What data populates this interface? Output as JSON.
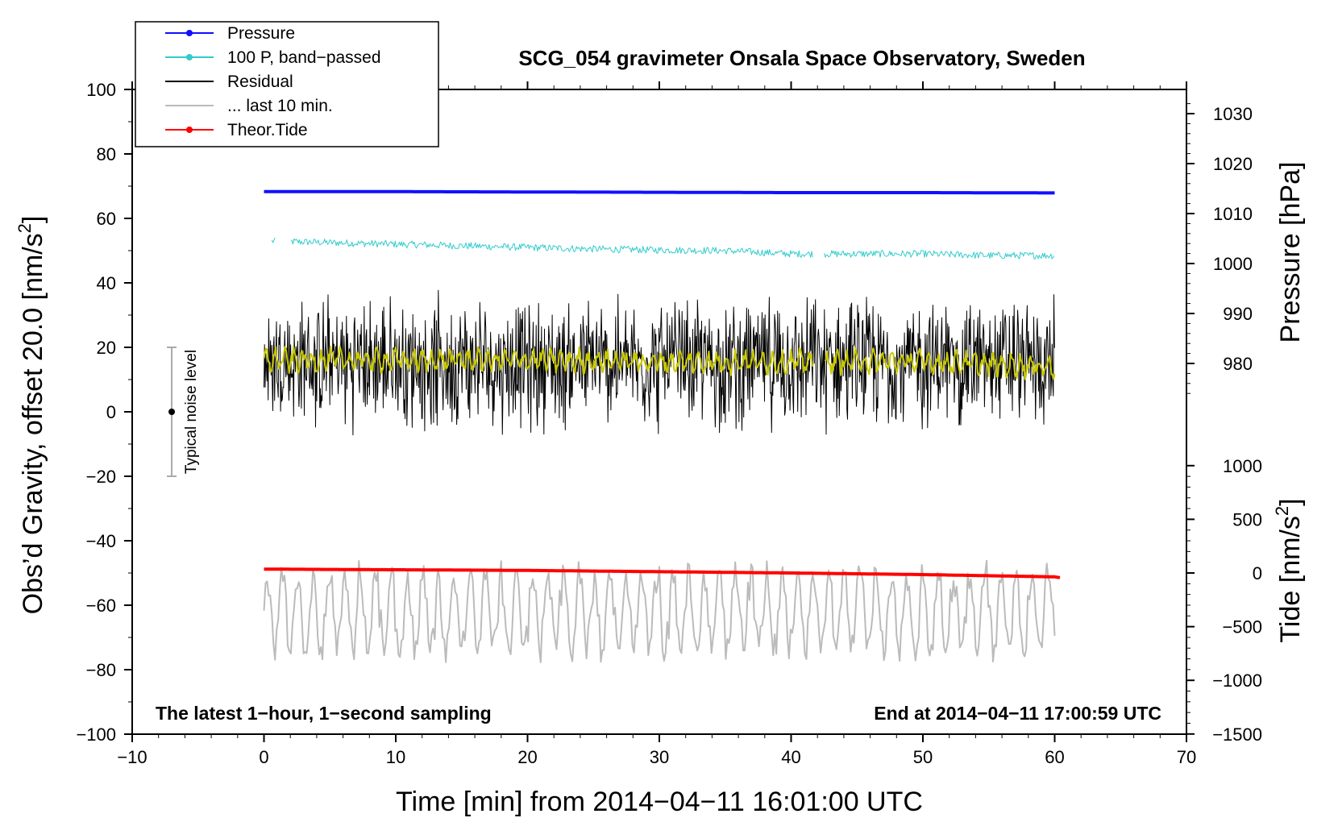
{
  "chart_data": {
    "type": "line",
    "title": "SCG_054 gravimeter Onsala Space Observatory, Sweden",
    "xlabel": "Time [min] from 2014−04−11 16:01:00 UTC",
    "ylabel_left": "Obs’d Gravity, offset 20.0 [nm/s",
    "ylabel_left_sup": "2",
    "ylabel_left_end": "]",
    "ylabel_right_pressure": "Pressure [hPa]",
    "ylabel_right_tide": "Tide [nm/s",
    "ylabel_right_tide_sup": "2",
    "ylabel_right_tide_end": "]",
    "xlim": [
      -10,
      70
    ],
    "ylim_left": [
      -100,
      100
    ],
    "x_ticks": [
      -10,
      0,
      10,
      20,
      30,
      40,
      50,
      60,
      70
    ],
    "x_tick_labels": [
      "−10",
      "0",
      "10",
      "20",
      "30",
      "40",
      "50",
      "60",
      "70"
    ],
    "y_left_ticks": [
      -100,
      -80,
      -60,
      -40,
      -20,
      0,
      20,
      40,
      60,
      80,
      100
    ],
    "y_left_tick_labels": [
      "−100",
      "−80",
      "−60",
      "−40",
      "−20",
      "0",
      "20",
      "40",
      "60",
      "80",
      "100"
    ],
    "pressure_axis": {
      "ticks": [
        980,
        990,
        1000,
        1010,
        1020,
        1030
      ],
      "map_left_value_at_1000": 46,
      "left_units_per_hpa": 1.55
    },
    "tide_axis": {
      "ticks": [
        1000,
        500,
        0,
        -500,
        -1000,
        -1500
      ],
      "tick_labels": [
        "1000",
        "500",
        "0",
        "−500",
        "−1000",
        "−1500"
      ],
      "map_left_value_at_0": -50,
      "left_units_per_nms2": 0.0333
    },
    "annotation_left": "The latest 1−hour, 1−second sampling",
    "annotation_right": "End at 2014−04−11 17:00:59 UTC",
    "noise_bar": {
      "x": -7,
      "center": 0,
      "low": -20,
      "high": 20,
      "label": "Typical noise level"
    },
    "legend": [
      {
        "label": "Pressure",
        "color": "#1010ff",
        "marker": true
      },
      {
        "label": "100 P, band−passed",
        "color": "#33cccc",
        "marker": true
      },
      {
        "label": "Residual",
        "color": "#000000",
        "marker": false
      },
      {
        "label": "... last 10 min.",
        "color": "#bbbbbb",
        "marker": false
      },
      {
        "label": "Theor.Tide",
        "color": "#ff0000",
        "marker": true
      }
    ],
    "series": [
      {
        "name": "Pressure",
        "color": "#1010ff",
        "x": [
          0,
          10,
          20,
          30,
          40,
          50,
          60
        ],
        "values": [
          68.3,
          68.3,
          68.2,
          68.1,
          68.0,
          68.0,
          67.9
        ],
        "width": 4
      },
      {
        "name": "100 P, band-passed",
        "color": "#33cccc",
        "x": [
          0,
          5,
          10,
          15,
          20,
          25,
          30,
          35,
          40,
          45,
          50,
          55,
          60
        ],
        "values": [
          53,
          52.5,
          52,
          51.5,
          51,
          50.5,
          50.2,
          50,
          49,
          49,
          49,
          48.5,
          48.5
        ],
        "width": 1
      },
      {
        "name": "Residual",
        "color": "#000000",
        "x": [
          0,
          10,
          20,
          30,
          40,
          50,
          60
        ],
        "values": [
          15,
          15,
          15,
          15,
          15,
          15,
          15
        ],
        "spread": 18,
        "width": 1
      },
      {
        "name": "Residual (smoothed)",
        "color": "#c8c800",
        "x": [
          0,
          10,
          20,
          30,
          40,
          50,
          60
        ],
        "values": [
          16,
          16,
          16,
          15.5,
          15.5,
          15.5,
          14
        ],
        "spread": 4,
        "width": 2
      },
      {
        "name": "... last 10 min.",
        "color": "#bbbbbb",
        "x": [
          0,
          10,
          20,
          30,
          40,
          50,
          60
        ],
        "values": [
          -62,
          -62,
          -62,
          -62,
          -62,
          -62,
          -62
        ],
        "spread": 12,
        "width": 2
      },
      {
        "name": "Theor.Tide",
        "color": "#ff0000",
        "x": [
          0,
          10,
          20,
          30,
          40,
          50,
          60,
          60.5
        ],
        "values": [
          -48.8,
          -49,
          -49.2,
          -49.6,
          -50,
          -50.5,
          -51.2,
          -51.5
        ],
        "width": 4
      }
    ]
  }
}
